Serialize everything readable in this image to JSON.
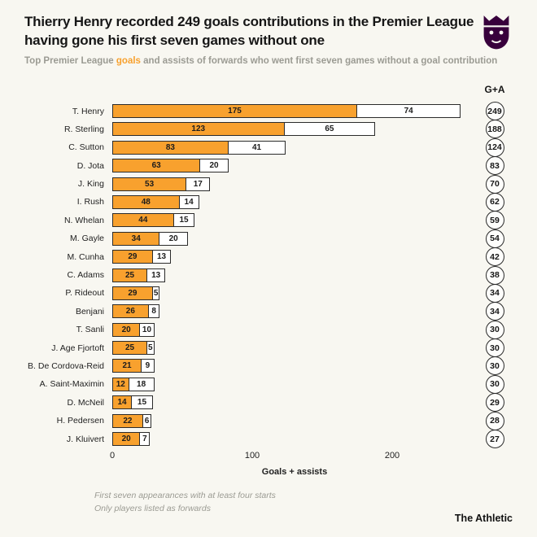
{
  "header": {
    "title": "Thierry Henry recorded 249 goals contributions in the Premier League having gone his first seven games without one",
    "subtitle_prefix": "Top Premier League ",
    "subtitle_highlight": "goals",
    "subtitle_suffix": " and assists of forwards who went first seven games without a goal contribution",
    "logo_color": "#38003C"
  },
  "chart_data": {
    "type": "bar",
    "orientation": "horizontal",
    "stacked": true,
    "total_header": "G+A",
    "categories": [
      "T. Henry",
      "R. Sterling",
      "C. Sutton",
      "D. Jota",
      "J. King",
      "I. Rush",
      "N. Whelan",
      "M. Gayle",
      "M. Cunha",
      "C. Adams",
      "P. Rideout",
      "Benjani",
      "T. Sanli",
      "J. Age Fjortoft",
      "B. De Cordova-Reid",
      "A. Saint-Maximin",
      "D. McNeil",
      "H. Pedersen",
      "J. Kluivert"
    ],
    "series": [
      {
        "name": "Goals",
        "color": "#F8A12E",
        "values": [
          175,
          123,
          83,
          63,
          53,
          48,
          44,
          34,
          29,
          25,
          29,
          26,
          20,
          25,
          21,
          12,
          14,
          22,
          20
        ]
      },
      {
        "name": "Assists",
        "color": "#FFFFFF",
        "values": [
          74,
          65,
          41,
          20,
          17,
          14,
          15,
          20,
          13,
          13,
          5,
          8,
          10,
          5,
          9,
          18,
          15,
          6,
          7
        ]
      }
    ],
    "totals": [
      249,
      188,
      124,
      83,
      70,
      62,
      59,
      54,
      42,
      38,
      34,
      34,
      30,
      30,
      30,
      30,
      29,
      28,
      27
    ],
    "xlabel": "Goals + assists",
    "xticks": [
      0,
      100,
      200
    ],
    "xlim": [
      0,
      255
    ],
    "grid": false,
    "legend": "none"
  },
  "footer": {
    "note1": "First seven appearances with at least four starts",
    "note2": "Only players listed as forwards",
    "brand": "The Athletic"
  }
}
